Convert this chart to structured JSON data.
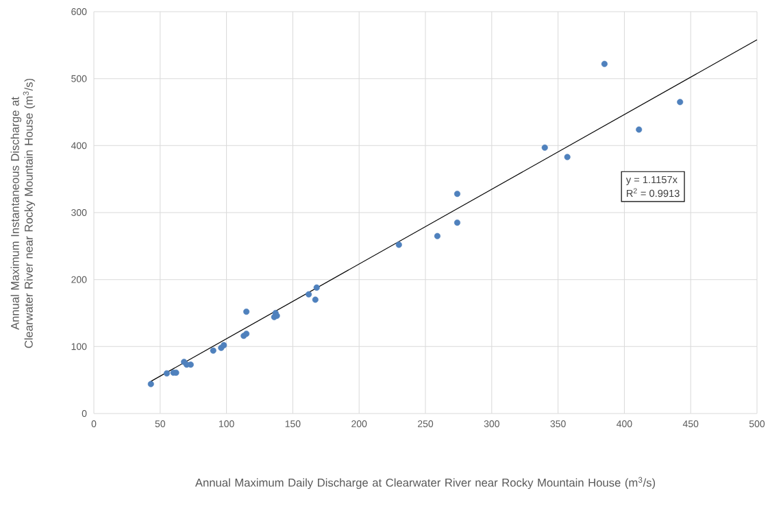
{
  "chart_data": {
    "type": "scatter",
    "xlabel": "Annual Maximum Daily Discharge at Clearwater River near Rocky Mountain House (m$^{3}$/s)",
    "ylabel": "Annual Maximum Instantaneous Discharge at Clearwater River near Rocky Mountain House (m$^{3}$/s)",
    "series": [
      {
        "color": "#4f81bd",
        "marker": "circle",
        "x": [
          43,
          55,
          60,
          62,
          68,
          70,
          73,
          90,
          96,
          98,
          113,
          115,
          115,
          136,
          138,
          137,
          162,
          168,
          167,
          230,
          259,
          274,
          274,
          340,
          357,
          385,
          411,
          442
        ],
        "values": [
          44,
          60,
          61,
          61,
          77,
          73,
          73,
          94,
          98,
          102,
          116,
          119,
          152,
          144,
          146,
          150,
          178,
          188,
          170,
          252,
          265,
          285,
          328,
          397,
          383,
          522,
          424,
          465
        ]
      },
      {
        "type": "line",
        "color": "#000000",
        "marker": "none",
        "line_style": "solid",
        "x": [
          43,
          500
        ],
        "values": [
          48,
          558
        ]
      }
    ],
    "annotations": [
      "y = 1.1157x",
      "R$^{2}$ = 0.9913"
    ],
    "xlim": [
      0,
      500
    ],
    "ylim": [
      0,
      600
    ],
    "xticks": [
      0,
      50,
      100,
      150,
      200,
      250,
      300,
      350,
      400,
      450,
      500
    ],
    "yticks": [
      0,
      100,
      200,
      300,
      400,
      500,
      600
    ],
    "grid": true
  }
}
